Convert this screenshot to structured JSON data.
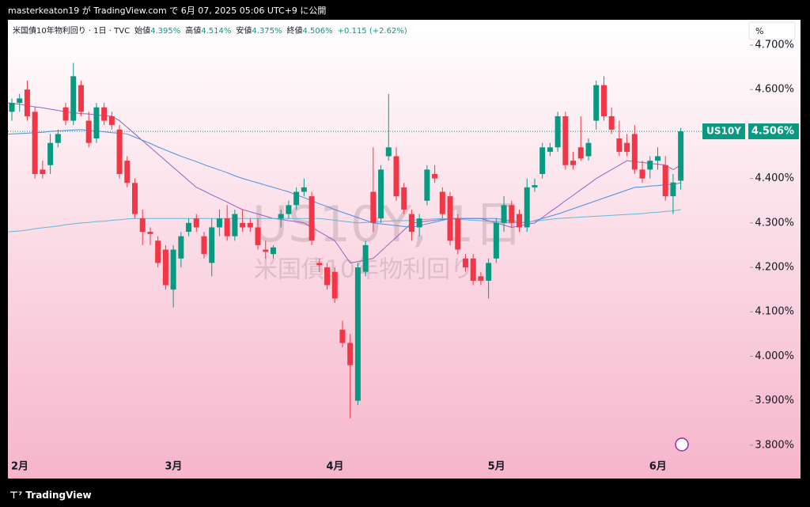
{
  "top_bar": "masterkeaton19 が TradingView.com で 6月 07, 2025 05:06 UTC+9 に公開",
  "footer": "TradingView",
  "scale_button": "%",
  "chart_data": {
    "type": "candlestick",
    "title": "米国債10年物利回り · 1日 · TVC",
    "ohlc_header": [
      {
        "label": "始値",
        "value": "4.395%"
      },
      {
        "label": "高値",
        "value": "4.514%"
      },
      {
        "label": "安値",
        "value": "4.375%"
      },
      {
        "label": "終値",
        "value": "4.506%"
      }
    ],
    "change": "+0.115 (+2.62%)",
    "watermark": [
      "US10Y, 1日",
      "米国債10年物利回り"
    ],
    "categories": [
      "2月",
      null,
      null,
      null,
      null,
      null,
      null,
      null,
      null,
      null,
      null,
      null,
      null,
      null,
      null,
      null,
      null,
      null,
      null,
      null,
      "3月",
      null,
      null,
      null,
      null,
      null,
      null,
      null,
      null,
      null,
      null,
      null,
      null,
      null,
      null,
      null,
      null,
      null,
      null,
      null,
      null,
      "4月",
      null,
      null,
      null,
      null,
      null,
      null,
      null,
      null,
      null,
      null,
      null,
      null,
      null,
      null,
      null,
      null,
      null,
      null,
      null,
      null,
      "5月",
      null,
      null,
      null,
      null,
      null,
      null,
      null,
      null,
      null,
      null,
      null,
      null,
      null,
      null,
      null,
      null,
      null,
      null,
      null,
      null,
      "6月",
      null,
      null,
      null,
      null
    ],
    "open": [
      4.55,
      4.57,
      4.6,
      4.55,
      4.42,
      4.43,
      4.48,
      4.56,
      4.53,
      4.61,
      4.53,
      4.49,
      4.56,
      4.54,
      4.51,
      4.44,
      4.39,
      4.31,
      4.28,
      4.26,
      4.24,
      4.15,
      4.22,
      4.28,
      4.31,
      4.27,
      4.21,
      4.29,
      4.31,
      4.27,
      4.3,
      4.3,
      4.29,
      4.24,
      4.23,
      4.31,
      4.32,
      4.34,
      4.37,
      4.36,
      4.21,
      4.2,
      4.19,
      4.06,
      4.03,
      3.9,
      4.19,
      4.37,
      4.31,
      4.45,
      4.45,
      4.38,
      4.32,
      4.29,
      4.35,
      4.41,
      4.37,
      4.36,
      4.31,
      4.22,
      4.22,
      4.18,
      4.17,
      4.22,
      4.3,
      4.34,
      4.32,
      4.29,
      4.38,
      4.41,
      4.46,
      4.47,
      4.54,
      4.44,
      4.47,
      4.45,
      4.53,
      4.61,
      4.54,
      4.49,
      4.48,
      4.5,
      4.42,
      4.42,
      4.44,
      4.43,
      4.36,
      4.395
    ],
    "high": [
      4.58,
      4.59,
      4.62,
      4.56,
      4.44,
      4.5,
      4.51,
      4.57,
      4.66,
      4.62,
      4.55,
      4.57,
      4.57,
      4.55,
      4.52,
      4.45,
      4.4,
      4.33,
      4.29,
      4.27,
      4.25,
      4.25,
      4.28,
      4.31,
      4.32,
      4.28,
      4.31,
      4.33,
      4.34,
      4.33,
      4.33,
      4.31,
      4.31,
      4.26,
      4.25,
      4.33,
      4.35,
      4.38,
      4.4,
      4.37,
      4.22,
      4.21,
      4.2,
      4.08,
      4.05,
      4.21,
      4.26,
      4.47,
      4.43,
      4.59,
      4.47,
      4.39,
      4.33,
      4.32,
      4.43,
      4.43,
      4.38,
      4.37,
      4.32,
      4.23,
      4.23,
      4.19,
      4.22,
      4.31,
      4.36,
      4.35,
      4.33,
      4.4,
      4.4,
      4.48,
      4.48,
      4.55,
      4.55,
      4.46,
      4.54,
      4.49,
      4.62,
      4.63,
      4.56,
      4.53,
      4.5,
      4.52,
      4.44,
      4.45,
      4.47,
      4.45,
      4.41,
      4.514
    ],
    "low": [
      4.53,
      4.55,
      4.53,
      4.4,
      4.4,
      4.41,
      4.47,
      4.52,
      4.52,
      4.54,
      4.47,
      4.48,
      4.52,
      4.51,
      4.4,
      4.38,
      4.31,
      4.25,
      4.25,
      4.2,
      4.15,
      4.11,
      4.2,
      4.27,
      4.28,
      4.22,
      4.18,
      4.27,
      4.26,
      4.26,
      4.28,
      4.28,
      4.24,
      4.22,
      4.22,
      4.29,
      4.31,
      4.33,
      4.36,
      4.25,
      4.19,
      4.15,
      4.12,
      4.02,
      3.86,
      3.89,
      4.18,
      4.28,
      4.3,
      4.44,
      4.35,
      4.32,
      4.26,
      4.27,
      4.34,
      4.39,
      4.31,
      4.25,
      4.23,
      4.19,
      4.16,
      4.16,
      4.13,
      4.21,
      4.28,
      4.29,
      4.28,
      4.28,
      4.37,
      4.4,
      4.45,
      4.46,
      4.42,
      4.42,
      4.44,
      4.44,
      4.51,
      4.53,
      4.5,
      4.45,
      4.45,
      4.41,
      4.39,
      4.4,
      4.42,
      4.35,
      4.32,
      4.375
    ],
    "close": [
      4.57,
      4.58,
      4.54,
      4.41,
      4.41,
      4.48,
      4.5,
      4.53,
      4.63,
      4.55,
      4.48,
      4.56,
      4.53,
      4.52,
      4.41,
      4.39,
      4.32,
      4.28,
      4.275,
      4.21,
      4.16,
      4.24,
      4.27,
      4.3,
      4.29,
      4.23,
      4.29,
      4.31,
      4.27,
      4.32,
      4.29,
      4.29,
      4.25,
      4.235,
      4.245,
      4.32,
      4.34,
      4.37,
      4.38,
      4.26,
      4.205,
      4.16,
      4.13,
      4.03,
      3.98,
      4.2,
      4.25,
      4.3,
      4.42,
      4.47,
      4.36,
      4.33,
      4.28,
      4.31,
      4.42,
      4.4,
      4.32,
      4.26,
      4.24,
      4.2,
      4.17,
      4.17,
      4.21,
      4.3,
      4.34,
      4.3,
      4.29,
      4.38,
      4.385,
      4.47,
      4.47,
      4.54,
      4.43,
      4.43,
      4.445,
      4.48,
      4.61,
      4.54,
      4.51,
      4.46,
      4.46,
      4.42,
      4.4,
      4.44,
      4.45,
      4.36,
      4.391,
      4.506
    ],
    "up_color": "#089981",
    "down_color": "#f23645",
    "overlays": [
      {
        "color": "#9c5fc0",
        "values": [
          4.57,
          4.567,
          4.564,
          4.561,
          4.559,
          4.556,
          4.553,
          4.55,
          4.548,
          4.546,
          4.545,
          4.543,
          4.541,
          4.54,
          4.53,
          4.515,
          4.5,
          4.485,
          4.47,
          4.455,
          4.44,
          4.425,
          4.41,
          4.395,
          4.38,
          4.372,
          4.363,
          4.355,
          4.347,
          4.338,
          4.33,
          4.325,
          4.32,
          4.315,
          4.31,
          4.308,
          4.305,
          4.303,
          4.3,
          4.29,
          4.28,
          4.27,
          4.26,
          4.235,
          4.21,
          4.213,
          4.217,
          4.22,
          4.236,
          4.252,
          4.268,
          4.284,
          4.3,
          4.302,
          4.304,
          4.306,
          4.308,
          4.31,
          4.31,
          4.31,
          4.31,
          4.31,
          4.305,
          4.3,
          4.295,
          4.29,
          4.293,
          4.297,
          4.3,
          4.312,
          4.325,
          4.337,
          4.35,
          4.362,
          4.375,
          4.387,
          4.4,
          4.41,
          4.42,
          4.43,
          4.44,
          4.438,
          4.436,
          4.434,
          4.432,
          4.43,
          4.42,
          4.43
        ]
      },
      {
        "color": "#4a90e2",
        "values": [
          4.5,
          4.501,
          4.502,
          4.503,
          4.504,
          4.506,
          4.507,
          4.508,
          4.509,
          4.51,
          4.508,
          4.507,
          4.505,
          4.503,
          4.502,
          4.5,
          4.493,
          4.486,
          4.479,
          4.471,
          4.464,
          4.457,
          4.45,
          4.444,
          4.438,
          4.431,
          4.425,
          4.419,
          4.413,
          4.406,
          4.4,
          4.395,
          4.39,
          4.385,
          4.38,
          4.375,
          4.37,
          4.363,
          4.357,
          4.35,
          4.343,
          4.337,
          4.33,
          4.324,
          4.318,
          4.312,
          4.306,
          4.3,
          4.298,
          4.296,
          4.294,
          4.292,
          4.29,
          4.294,
          4.298,
          4.302,
          4.306,
          4.31,
          4.31,
          4.31,
          4.31,
          4.31,
          4.31,
          4.31,
          4.307,
          4.305,
          4.302,
          4.3,
          4.305,
          4.31,
          4.315,
          4.32,
          4.326,
          4.332,
          4.338,
          4.344,
          4.35,
          4.356,
          4.362,
          4.368,
          4.374,
          4.38,
          4.381,
          4.383,
          4.384,
          4.386,
          4.387,
          4.39
        ]
      },
      {
        "color": "#5fb8d6",
        "values": [
          4.28,
          4.282,
          4.284,
          4.287,
          4.289,
          4.291,
          4.293,
          4.296,
          4.298,
          4.3,
          4.301,
          4.303,
          4.304,
          4.306,
          4.307,
          4.309,
          4.31,
          4.31,
          4.31,
          4.31,
          4.31,
          4.31,
          4.31,
          4.31,
          4.31,
          4.31,
          4.31,
          4.31,
          4.31,
          4.31,
          4.31,
          4.31,
          4.31,
          4.31,
          4.31,
          4.31,
          4.31,
          4.31,
          4.31,
          4.31,
          4.31,
          4.308,
          4.306,
          4.304,
          4.302,
          4.3,
          4.301,
          4.302,
          4.303,
          4.304,
          4.305,
          4.305,
          4.306,
          4.307,
          4.308,
          4.309,
          4.31,
          4.309,
          4.308,
          4.307,
          4.306,
          4.305,
          4.304,
          4.303,
          4.302,
          4.301,
          4.3,
          4.302,
          4.304,
          4.306,
          4.308,
          4.31,
          4.311,
          4.312,
          4.313,
          4.314,
          4.315,
          4.316,
          4.317,
          4.318,
          4.319,
          4.32,
          4.321,
          4.323,
          4.324,
          4.326,
          4.327,
          4.33
        ]
      }
    ],
    "last_value": {
      "symbol": "US10Y",
      "value": 4.506,
      "label": "4.506%"
    },
    "ylim": [
      3.725,
      4.757
    ],
    "yticks": [
      {
        "value": 3.8,
        "label": "3.800%"
      },
      {
        "value": 3.9,
        "label": "3.900%"
      },
      {
        "value": 4.0,
        "label": "4.000%"
      },
      {
        "value": 4.1,
        "label": "4.100%"
      },
      {
        "value": 4.2,
        "label": "4.200%"
      },
      {
        "value": 4.3,
        "label": "4.300%"
      },
      {
        "value": 4.4,
        "label": "4.400%"
      },
      {
        "value": 4.5,
        "label": "4.500%"
      },
      {
        "value": 4.6,
        "label": "4.600%"
      },
      {
        "value": 4.7,
        "label": "4.700%"
      }
    ]
  }
}
